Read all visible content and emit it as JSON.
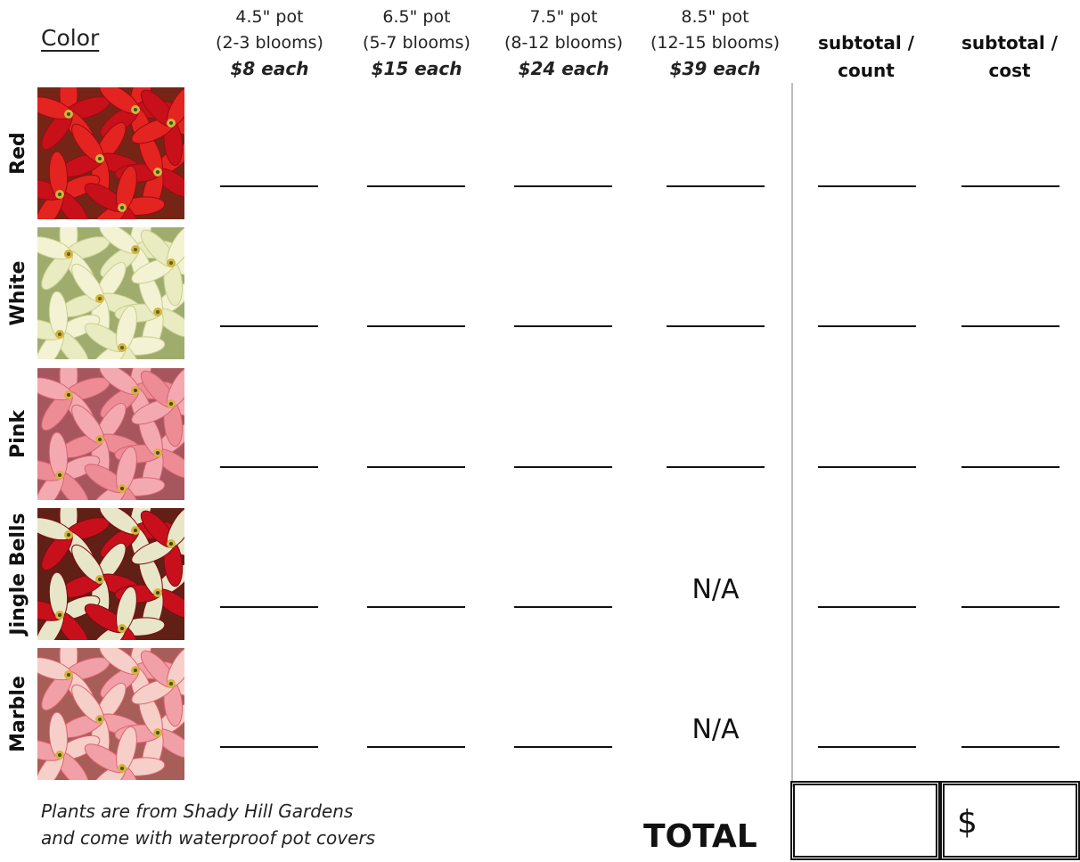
{
  "header": {
    "color_label": "Color",
    "columns": [
      {
        "size": "4.5\" pot",
        "blooms": "(2-3 blooms)",
        "price": "$8 each"
      },
      {
        "size": "6.5\" pot",
        "blooms": "(5-7 blooms)",
        "price": "$15 each"
      },
      {
        "size": "7.5\" pot",
        "blooms": "(8-12 blooms)",
        "price": "$24 each"
      },
      {
        "size": "8.5\" pot",
        "blooms": "(12-15 blooms)",
        "price": "$39 each"
      }
    ],
    "subtotal_count": [
      "subtotal /",
      "count"
    ],
    "subtotal_cost": [
      "subtotal /",
      "cost"
    ]
  },
  "rows": [
    {
      "label": "Red",
      "palette": [
        "#c8101a",
        "#e32421",
        "#9b0a10",
        "#2f5a22"
      ]
    },
    {
      "label": "White",
      "palette": [
        "#e9ebc0",
        "#f3f2d2",
        "#c9cf92",
        "#4f6b2a"
      ]
    },
    {
      "label": "Pink",
      "palette": [
        "#ee8c96",
        "#f4a9b1",
        "#d26673",
        "#5b3a36"
      ]
    },
    {
      "label": "Jingle Bells",
      "palette": [
        "#c8101c",
        "#e8e6c8",
        "#7d0a12",
        "#2f4a20"
      ]
    },
    {
      "label": "Marble",
      "palette": [
        "#f0a0a6",
        "#f6d0c8",
        "#e06272",
        "#3c5528"
      ]
    }
  ],
  "na_text": "N/A",
  "footer": {
    "note_line1": "Plants are from Shady Hill Gardens",
    "note_line2": "and come with waterproof pot covers",
    "total_label": "TOTAL",
    "currency": "$"
  }
}
